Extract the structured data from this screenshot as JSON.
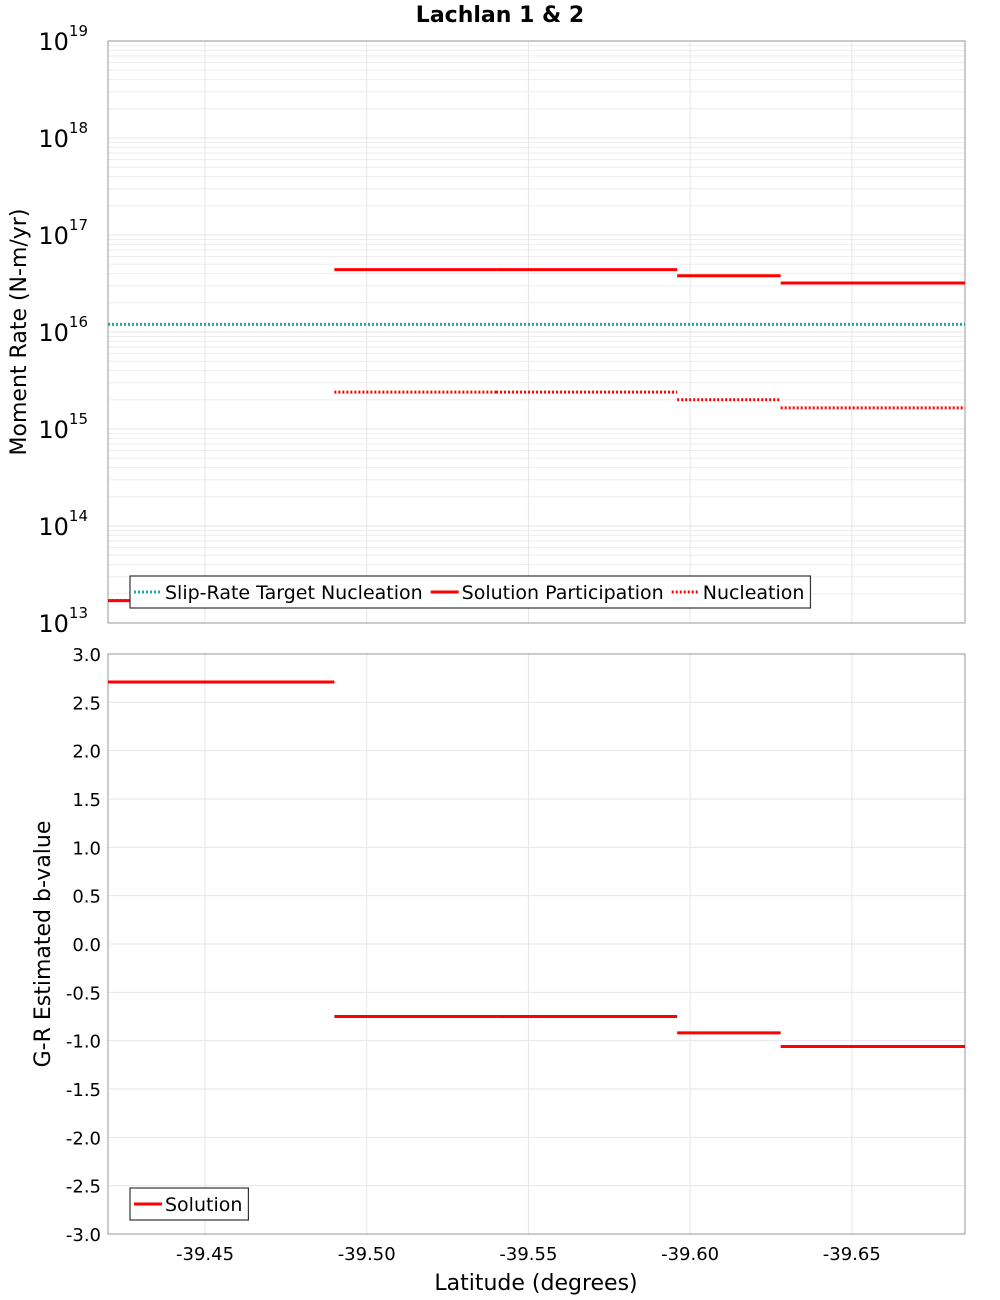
{
  "chart_data": [
    {
      "type": "line",
      "title": "Lachlan 1 & 2",
      "xlabel": "",
      "ylabel": "Moment Rate (N-m/yr)",
      "yscale": "log",
      "xlim": [
        -39.42,
        -39.685
      ],
      "ylim": [
        10000000000000.0,
        1e+19
      ],
      "x_reversed": true,
      "yticks": [
        {
          "base": "10",
          "exp": "13",
          "value": 10000000000000.0
        },
        {
          "base": "10",
          "exp": "14",
          "value": 100000000000000.0
        },
        {
          "base": "10",
          "exp": "15",
          "value": 1000000000000000.0
        },
        {
          "base": "10",
          "exp": "16",
          "value": 1e+16
        },
        {
          "base": "10",
          "exp": "17",
          "value": 1e+17
        },
        {
          "base": "10",
          "exp": "18",
          "value": 1e+18
        },
        {
          "base": "10",
          "exp": "19",
          "value": 1e+19
        }
      ],
      "grid": true,
      "legend_placement": "bottom-left",
      "series": [
        {
          "name": "Slip-Rate Target Nucleation",
          "style": "dotted",
          "color": "#1aaca6",
          "segments": [
            {
              "x0": -39.42,
              "x1": -39.685,
              "y": 1.2e+16
            }
          ]
        },
        {
          "name": "Solution Participation",
          "style": "solid",
          "color": "#ff0000",
          "segments": [
            {
              "x0": -39.42,
              "x1": -39.49,
              "y": 17000000000000.0
            },
            {
              "x0": -39.49,
              "x1": -39.54,
              "y": 4.4e+16
            },
            {
              "x0": -39.54,
              "x1": -39.596,
              "y": 4.4e+16
            },
            {
              "x0": -39.596,
              "x1": -39.628,
              "y": 3.8e+16
            },
            {
              "x0": -39.628,
              "x1": -39.685,
              "y": 3.2e+16
            }
          ]
        },
        {
          "name": "Nucleation",
          "style": "dotted",
          "color": "#ff0000",
          "segments": [
            {
              "x0": -39.42,
              "x1": -39.49,
              "y": 17000000000000.0
            },
            {
              "x0": -39.49,
              "x1": -39.54,
              "y": 2400000000000000.0
            },
            {
              "x0": -39.54,
              "x1": -39.596,
              "y": 2400000000000000.0
            },
            {
              "x0": -39.596,
              "x1": -39.628,
              "y": 2000000000000000.0
            },
            {
              "x0": -39.628,
              "x1": -39.685,
              "y": 1650000000000000.0
            }
          ]
        }
      ]
    },
    {
      "type": "line",
      "title": "",
      "xlabel": "Latitude (degrees)",
      "ylabel": "G-R Estimated b-value",
      "yscale": "linear",
      "xlim": [
        -39.42,
        -39.685
      ],
      "ylim": [
        -3.0,
        3.0
      ],
      "x_reversed": true,
      "xticks": [
        {
          "value": -39.45,
          "label": "-39.45"
        },
        {
          "value": -39.5,
          "label": "-39.50"
        },
        {
          "value": -39.55,
          "label": "-39.55"
        },
        {
          "value": -39.6,
          "label": "-39.60"
        },
        {
          "value": -39.65,
          "label": "-39.65"
        }
      ],
      "yticks": [
        {
          "value": 3.0,
          "label": "3.0"
        },
        {
          "value": 2.5,
          "label": "2.5"
        },
        {
          "value": 2.0,
          "label": "2.0"
        },
        {
          "value": 1.5,
          "label": "1.5"
        },
        {
          "value": 1.0,
          "label": "1.0"
        },
        {
          "value": 0.5,
          "label": "0.5"
        },
        {
          "value": 0.0,
          "label": "0.0"
        },
        {
          "value": -0.5,
          "label": "-0.5"
        },
        {
          "value": -1.0,
          "label": "-1.0"
        },
        {
          "value": -1.5,
          "label": "-1.5"
        },
        {
          "value": -2.0,
          "label": "-2.0"
        },
        {
          "value": -2.5,
          "label": "-2.5"
        },
        {
          "value": -3.0,
          "label": "-3.0"
        }
      ],
      "grid": true,
      "legend_placement": "bottom-left",
      "series": [
        {
          "name": "Solution",
          "style": "solid",
          "color": "#ff0000",
          "segments": [
            {
              "x0": -39.42,
              "x1": -39.49,
              "y": 2.71
            },
            {
              "x0": -39.49,
              "x1": -39.54,
              "y": -0.75
            },
            {
              "x0": -39.54,
              "x1": -39.596,
              "y": -0.75
            },
            {
              "x0": -39.596,
              "x1": -39.628,
              "y": -0.92
            },
            {
              "x0": -39.628,
              "x1": -39.685,
              "y": -1.06
            }
          ]
        }
      ]
    }
  ]
}
